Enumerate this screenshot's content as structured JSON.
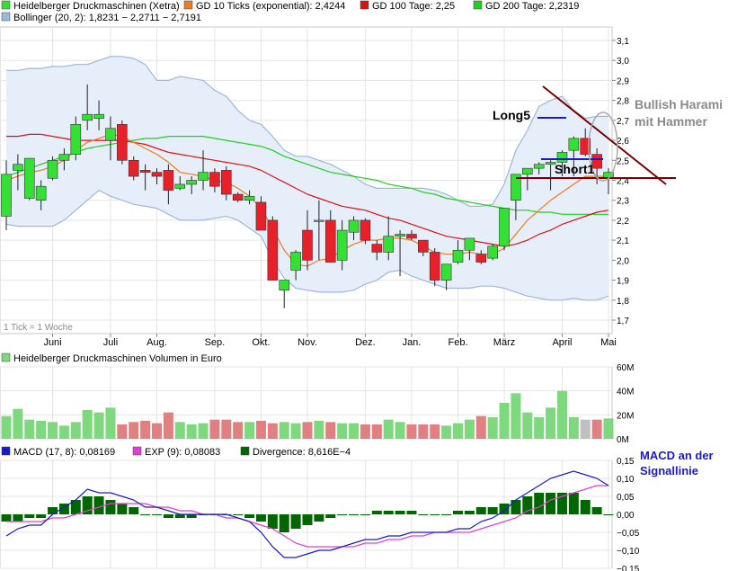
{
  "colors": {
    "ma10": "#f07a1e",
    "ma100": "#e01010",
    "ma200": "#1fd01f",
    "bollinger_line": "#9db7dd",
    "bollinger_fill": "#e6eefa",
    "up": "#33e033",
    "down": "#e8202a",
    "macd": "#1a1acc",
    "exp": "#e040d0",
    "divergence": "#006600",
    "vol_up": "#7ed87e",
    "vol_down": "#e08080",
    "vol_current": "#c0c0c0",
    "trend_line": "#7a0000",
    "long_marker": "#1a1acc"
  },
  "legend": {
    "row1": [
      {
        "label": "Heidelberger Druckmaschinen (Xetra)",
        "color": "#33e033"
      },
      {
        "label": "GD 10 Ticks (exponential): 2,4244",
        "color": "#f07a1e"
      },
      {
        "label": "GD 100 Tage: 2,25",
        "color": "#e01010"
      },
      {
        "label": "GD 200 Tage: 2,2319",
        "color": "#1fd01f"
      }
    ],
    "row2": [
      {
        "label": "Bollinger (20, 2): 1,8231  − 2,2711  − 2,7191",
        "color": "#9db7dd"
      }
    ],
    "volume": {
      "label": "Heidelberger Druckmaschinen Volumen in Euro",
      "color": "#7ed87e"
    },
    "macd": [
      {
        "label": "MACD (17, 8): 0,08169",
        "color": "#1a1acc"
      },
      {
        "label": "EXP (9): 0,08083",
        "color": "#e040d0"
      },
      {
        "label": "Divergence: 8,616E−4",
        "color": "#006600"
      }
    ]
  },
  "tick_note": "1 Tick = 1 Woche",
  "annotations": {
    "long": "Long5",
    "short": "Short1",
    "harami_line1": "Bullish Harami",
    "harami_line2": "mit Hammer",
    "macd_line1": "MACD an der",
    "macd_line2": "Signallinie"
  },
  "chart_data": [
    {
      "type": "candlestick",
      "title": "Heidelberger Druckmaschinen (Xetra)",
      "ylim": [
        1.7,
        3.1
      ],
      "yticks": [
        "3,1",
        "3,0",
        "2,9",
        "2,8",
        "2,7",
        "2,6",
        "2,5",
        "2,4",
        "2,3",
        "2,2",
        "2,1",
        "2,0",
        "1,9",
        "1,8",
        "1,7"
      ],
      "months": [
        {
          "label": "Juni",
          "week": 4
        },
        {
          "label": "Juli",
          "week": 9
        },
        {
          "label": "Aug.",
          "week": 13
        },
        {
          "label": "Sep.",
          "week": 18
        },
        {
          "label": "Okt.",
          "week": 22
        },
        {
          "label": "Nov.",
          "week": 26
        },
        {
          "label": "Dez.",
          "week": 31
        },
        {
          "label": "Jan.",
          "week": 35
        },
        {
          "label": "Feb.",
          "week": 39
        },
        {
          "label": "März",
          "week": 43
        },
        {
          "label": "April",
          "week": 48
        },
        {
          "label": "Mai",
          "week": 52
        }
      ],
      "candles": [
        [
          2.22,
          2.5,
          2.15,
          2.43
        ],
        [
          2.45,
          2.53,
          2.35,
          2.48
        ],
        [
          2.31,
          2.5,
          2.3,
          2.51
        ],
        [
          2.3,
          2.4,
          2.25,
          2.37
        ],
        [
          2.41,
          2.52,
          2.4,
          2.5
        ],
        [
          2.5,
          2.56,
          2.45,
          2.53
        ],
        [
          2.53,
          2.72,
          2.5,
          2.68
        ],
        [
          2.7,
          2.88,
          2.65,
          2.73
        ],
        [
          2.71,
          2.8,
          2.65,
          2.73
        ],
        [
          2.6,
          2.72,
          2.5,
          2.66
        ],
        [
          2.68,
          2.7,
          2.48,
          2.5
        ],
        [
          2.5,
          2.52,
          2.4,
          2.42
        ],
        [
          2.45,
          2.48,
          2.35,
          2.44
        ],
        [
          2.44,
          2.46,
          2.38,
          2.42
        ],
        [
          2.45,
          2.48,
          2.28,
          2.35
        ],
        [
          2.36,
          2.42,
          2.35,
          2.38
        ],
        [
          2.38,
          2.42,
          2.33,
          2.4
        ],
        [
          2.4,
          2.55,
          2.35,
          2.44
        ],
        [
          2.44,
          2.46,
          2.34,
          2.37
        ],
        [
          2.45,
          2.47,
          2.3,
          2.33
        ],
        [
          2.33,
          2.34,
          2.29,
          2.3
        ],
        [
          2.3,
          2.35,
          2.28,
          2.32
        ],
        [
          2.29,
          2.32,
          2.16,
          2.15
        ],
        [
          2.2,
          2.22,
          1.9,
          1.9
        ],
        [
          1.85,
          1.9,
          1.76,
          1.9
        ],
        [
          1.95,
          2.05,
          1.9,
          2.04
        ],
        [
          2.15,
          2.25,
          1.95,
          2.0
        ],
        [
          2.2,
          2.3,
          2.0,
          2.2
        ],
        [
          2.2,
          2.25,
          2.0,
          1.99
        ],
        [
          2.0,
          2.2,
          1.95,
          2.15
        ],
        [
          2.14,
          2.22,
          2.1,
          2.2
        ],
        [
          2.2,
          2.21,
          2.08,
          2.1
        ],
        [
          2.08,
          2.1,
          2.0,
          2.04
        ],
        [
          2.04,
          2.22,
          2.0,
          2.12
        ],
        [
          2.12,
          2.15,
          1.92,
          2.13
        ],
        [
          2.13,
          2.15,
          2.1,
          2.11
        ],
        [
          2.1,
          2.1,
          2.02,
          2.04
        ],
        [
          2.04,
          2.06,
          1.87,
          1.9
        ],
        [
          1.9,
          1.97,
          1.85,
          1.98
        ],
        [
          1.99,
          2.1,
          1.98,
          2.05
        ],
        [
          2.05,
          2.11,
          2.0,
          2.11
        ],
        [
          2.03,
          2.05,
          1.98,
          1.99
        ],
        [
          2.01,
          2.08,
          2.0,
          2.07
        ],
        [
          2.07,
          2.26,
          2.05,
          2.26
        ],
        [
          2.3,
          2.43,
          2.2,
          2.43
        ],
        [
          2.43,
          2.46,
          2.35,
          2.46
        ],
        [
          2.46,
          2.49,
          2.43,
          2.48
        ],
        [
          2.48,
          2.5,
          2.35,
          2.49
        ],
        [
          2.49,
          2.55,
          2.42,
          2.54
        ],
        [
          2.55,
          2.62,
          2.42,
          2.61
        ],
        [
          2.61,
          2.66,
          2.52,
          2.53
        ],
        [
          2.53,
          2.56,
          2.38,
          2.46
        ],
        [
          2.41,
          2.46,
          2.33,
          2.44
        ]
      ],
      "series": [
        {
          "name": "GD 10 Ticks (exponential)",
          "values": [
            2.4,
            2.42,
            2.44,
            2.45,
            2.47,
            2.5,
            2.55,
            2.59,
            2.61,
            2.63,
            2.62,
            2.59,
            2.56,
            2.53,
            2.49,
            2.44,
            2.43,
            2.42,
            2.4,
            2.39,
            2.36,
            2.32,
            2.26,
            2.16,
            2.05,
            1.98,
            1.97,
            2.0,
            2.01,
            2.05,
            2.08,
            2.1,
            2.1,
            2.11,
            2.11,
            2.1,
            2.07,
            2.04,
            2.03,
            2.03,
            2.04,
            2.03,
            2.03,
            2.06,
            2.13,
            2.2,
            2.25,
            2.3,
            2.34,
            2.38,
            2.42,
            2.42,
            2.42
          ]
        },
        {
          "name": "GD 100 Tage",
          "values": [
            2.62,
            2.62,
            2.63,
            2.63,
            2.62,
            2.61,
            2.6,
            2.6,
            2.6,
            2.6,
            2.6,
            2.59,
            2.58,
            2.56,
            2.54,
            2.53,
            2.52,
            2.51,
            2.5,
            2.49,
            2.48,
            2.47,
            2.45,
            2.42,
            2.39,
            2.36,
            2.33,
            2.31,
            2.29,
            2.27,
            2.26,
            2.25,
            2.23,
            2.21,
            2.2,
            2.18,
            2.16,
            2.14,
            2.12,
            2.11,
            2.1,
            2.09,
            2.08,
            2.07,
            2.08,
            2.1,
            2.13,
            2.15,
            2.18,
            2.2,
            2.22,
            2.24,
            2.25
          ]
        },
        {
          "name": "GD 200 Tage",
          "values": [
            2.42,
            2.44,
            2.46,
            2.48,
            2.5,
            2.52,
            2.54,
            2.56,
            2.57,
            2.58,
            2.59,
            2.6,
            2.61,
            2.61,
            2.62,
            2.62,
            2.62,
            2.62,
            2.61,
            2.6,
            2.59,
            2.58,
            2.57,
            2.55,
            2.52,
            2.5,
            2.48,
            2.46,
            2.44,
            2.43,
            2.42,
            2.41,
            2.4,
            2.38,
            2.37,
            2.36,
            2.34,
            2.33,
            2.31,
            2.3,
            2.29,
            2.28,
            2.27,
            2.26,
            2.25,
            2.25,
            2.24,
            2.24,
            2.23,
            2.23,
            2.23,
            2.23,
            2.23
          ]
        },
        {
          "name": "Bollinger upper",
          "values": [
            2.95,
            2.95,
            2.96,
            2.96,
            2.97,
            2.97,
            2.98,
            2.98,
            3.0,
            3.02,
            3.02,
            3.01,
            2.98,
            2.9,
            2.9,
            2.92,
            2.91,
            2.9,
            2.85,
            2.82,
            2.75,
            2.7,
            2.68,
            2.62,
            2.55,
            2.52,
            2.52,
            2.5,
            2.48,
            2.45,
            2.42,
            2.38,
            2.36,
            2.36,
            2.36,
            2.36,
            2.36,
            2.35,
            2.33,
            2.3,
            2.27,
            2.27,
            2.28,
            2.38,
            2.55,
            2.65,
            2.77,
            2.8,
            2.82,
            2.75,
            2.71,
            2.72,
            2.72
          ]
        },
        {
          "name": "Bollinger lower",
          "values": [
            2.18,
            2.17,
            2.17,
            2.17,
            2.17,
            2.2,
            2.25,
            2.3,
            2.35,
            2.32,
            2.3,
            2.28,
            2.27,
            2.26,
            2.23,
            2.2,
            2.2,
            2.2,
            2.21,
            2.22,
            2.2,
            2.16,
            2.12,
            2.0,
            1.91,
            1.86,
            1.85,
            1.84,
            1.84,
            1.84,
            1.85,
            1.88,
            1.9,
            1.94,
            1.95,
            1.92,
            1.9,
            1.88,
            1.86,
            1.86,
            1.86,
            1.87,
            1.87,
            1.86,
            1.84,
            1.82,
            1.81,
            1.8,
            1.8,
            1.81,
            1.8,
            1.8,
            1.82
          ]
        }
      ]
    },
    {
      "type": "bar",
      "title": "Heidelberger Druckmaschinen Volumen in Euro",
      "ylim": [
        0,
        60
      ],
      "yticks": [
        "60M",
        "40M",
        "20M",
        "0M"
      ],
      "values": [
        19,
        25,
        16,
        15,
        14,
        11,
        14,
        24,
        22,
        26,
        12,
        14,
        15,
        13,
        22,
        14,
        12,
        13,
        16,
        16,
        14,
        14,
        15,
        13,
        14,
        13,
        14,
        15,
        14,
        13,
        13,
        12,
        12,
        16,
        14,
        12,
        12,
        12,
        11,
        13,
        16,
        19,
        18,
        30,
        38,
        22,
        18,
        26,
        40,
        18,
        16,
        16,
        17
      ],
      "current_index": 50
    },
    {
      "type": "bar+line",
      "title": "MACD (17, 8)",
      "ylim": [
        -0.15,
        0.15
      ],
      "yticks": [
        "0,15",
        "0,10",
        "0,05",
        "0,00",
        "−0,05",
        "−0,10",
        "−0,15"
      ],
      "series": [
        {
          "name": "MACD (17, 8)",
          "values": [
            -0.06,
            -0.04,
            -0.03,
            -0.03,
            0.0,
            0.02,
            0.04,
            0.07,
            0.06,
            0.06,
            0.05,
            0.04,
            0.02,
            0.02,
            0.01,
            0.0,
            0.0,
            0.0,
            0.0,
            0.0,
            -0.01,
            -0.02,
            -0.05,
            -0.09,
            -0.12,
            -0.12,
            -0.11,
            -0.1,
            -0.1,
            -0.09,
            -0.08,
            -0.07,
            -0.07,
            -0.06,
            -0.06,
            -0.05,
            -0.05,
            -0.05,
            -0.05,
            -0.04,
            -0.04,
            -0.02,
            -0.01,
            0.01,
            0.04,
            0.06,
            0.08,
            0.1,
            0.11,
            0.12,
            0.11,
            0.1,
            0.08
          ]
        },
        {
          "name": "EXP (9)",
          "values": [
            -0.02,
            -0.02,
            -0.02,
            -0.02,
            -0.01,
            -0.01,
            0.0,
            0.01,
            0.02,
            0.03,
            0.03,
            0.03,
            0.03,
            0.02,
            0.02,
            0.01,
            0.01,
            0.0,
            0.0,
            -0.01,
            -0.01,
            -0.02,
            -0.03,
            -0.04,
            -0.06,
            -0.08,
            -0.09,
            -0.09,
            -0.09,
            -0.09,
            -0.09,
            -0.08,
            -0.08,
            -0.07,
            -0.07,
            -0.06,
            -0.06,
            -0.05,
            -0.05,
            -0.05,
            -0.05,
            -0.04,
            -0.03,
            -0.02,
            -0.01,
            0.01,
            0.02,
            0.04,
            0.05,
            0.06,
            0.07,
            0.08,
            0.08
          ]
        },
        {
          "name": "Divergence",
          "values": [
            -0.02,
            -0.02,
            -0.01,
            -0.01,
            0.02,
            0.03,
            0.04,
            0.05,
            0.05,
            0.04,
            0.03,
            0.02,
            0.0,
            0.0,
            -0.01,
            -0.01,
            -0.01,
            0.0,
            0.0,
            0.0,
            0.0,
            -0.01,
            -0.02,
            -0.04,
            -0.05,
            -0.04,
            -0.03,
            -0.02,
            -0.01,
            0.0,
            0.0,
            0.0,
            0.01,
            0.01,
            0.01,
            0.01,
            0.0,
            0.0,
            0.0,
            0.01,
            0.01,
            0.02,
            0.02,
            0.03,
            0.04,
            0.05,
            0.06,
            0.06,
            0.06,
            0.06,
            0.04,
            0.02,
            0.0
          ]
        }
      ]
    }
  ]
}
